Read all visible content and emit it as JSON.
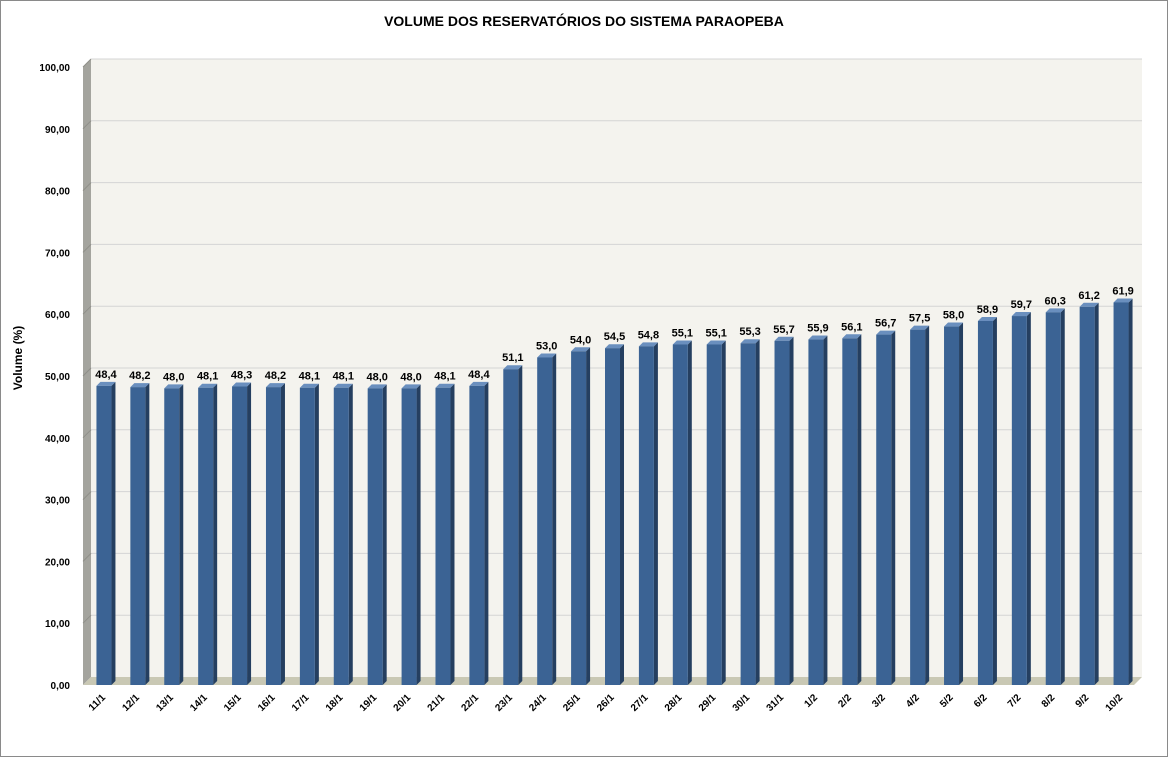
{
  "chart_data": {
    "type": "bar",
    "title": "VOLUME DOS RESERVATÓRIOS DO SISTEMA PARAOPEBA",
    "xlabel": "",
    "ylabel": "Volume (%)",
    "ylim": [
      0,
      100
    ],
    "yticks": [
      "0,00",
      "10,00",
      "20,00",
      "30,00",
      "40,00",
      "50,00",
      "60,00",
      "70,00",
      "80,00",
      "90,00",
      "100,00"
    ],
    "grid": true,
    "categories": [
      "11/1",
      "12/1",
      "13/1",
      "14/1",
      "15/1",
      "16/1",
      "17/1",
      "18/1",
      "19/1",
      "20/1",
      "21/1",
      "22/1",
      "23/1",
      "24/1",
      "25/1",
      "26/1",
      "27/1",
      "28/1",
      "29/1",
      "30/1",
      "31/1",
      "1/2",
      "2/2",
      "3/2",
      "4/2",
      "5/2",
      "6/2",
      "7/2",
      "8/2",
      "9/2",
      "10/2"
    ],
    "values": [
      48.4,
      48.2,
      48.0,
      48.1,
      48.3,
      48.2,
      48.1,
      48.1,
      48.0,
      48.0,
      48.1,
      48.4,
      51.1,
      53.0,
      54.0,
      54.5,
      54.8,
      55.1,
      55.1,
      55.3,
      55.7,
      55.9,
      56.1,
      56.7,
      57.5,
      58.0,
      58.9,
      59.7,
      60.3,
      61.2,
      61.9
    ],
    "data_labels": [
      "48,4",
      "48,2",
      "48,0",
      "48,1",
      "48,3",
      "48,2",
      "48,1",
      "48,1",
      "48,0",
      "48,0",
      "48,1",
      "48,4",
      "51,1",
      "53,0",
      "54,0",
      "54,5",
      "54,8",
      "55,1",
      "55,1",
      "55,3",
      "55,7",
      "55,9",
      "56,1",
      "56,7",
      "57,5",
      "58,0",
      "58,9",
      "59,7",
      "60,3",
      "61,2",
      "61,9"
    ],
    "colors": {
      "bar_front": "#3b6394",
      "bar_side": "#253f60",
      "bar_top": "#6a8fbe",
      "back_wall": "#f4f3ee",
      "side_wall": "#a4a49e",
      "floor": "#c9c8b4",
      "grid": "#d4d4d4"
    }
  }
}
